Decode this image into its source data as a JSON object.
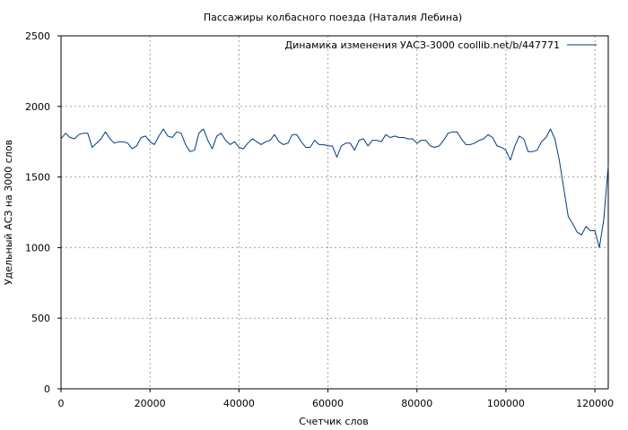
{
  "chart_data": {
    "type": "line",
    "title": "Пассажиры колбасного поезда (Наталия Лебина)",
    "xlabel": "Счетчик слов",
    "ylabel": "Удельный АСЗ на 3000 слов",
    "xlim": [
      0,
      123000
    ],
    "ylim": [
      0,
      2500
    ],
    "x_ticks": [
      0,
      20000,
      40000,
      60000,
      80000,
      100000,
      120000
    ],
    "y_ticks": [
      0,
      500,
      1000,
      1500,
      2000,
      2500
    ],
    "grid": true,
    "legend_position": "top-right",
    "series": [
      {
        "name": "Динамика изменения УАСЗ-3000  coollib.net/b/447771",
        "color": "#003a80",
        "x": [
          0,
          1000,
          2000,
          3000,
          4000,
          5000,
          6000,
          7000,
          8000,
          9000,
          10000,
          11000,
          12000,
          13000,
          14000,
          15000,
          16000,
          17000,
          18000,
          19000,
          20000,
          21000,
          22000,
          23000,
          24000,
          25000,
          26000,
          27000,
          28000,
          29000,
          30000,
          31000,
          32000,
          33000,
          34000,
          35000,
          36000,
          37000,
          38000,
          39000,
          40000,
          41000,
          42000,
          43000,
          44000,
          45000,
          46000,
          47000,
          48000,
          49000,
          50000,
          51000,
          52000,
          53000,
          54000,
          55000,
          56000,
          57000,
          58000,
          59000,
          60000,
          61000,
          62000,
          63000,
          64000,
          65000,
          66000,
          67000,
          68000,
          69000,
          70000,
          71000,
          72000,
          73000,
          74000,
          75000,
          76000,
          77000,
          78000,
          79000,
          80000,
          81000,
          82000,
          83000,
          84000,
          85000,
          86000,
          87000,
          88000,
          89000,
          90000,
          91000,
          92000,
          93000,
          94000,
          95000,
          96000,
          97000,
          98000,
          99000,
          100000,
          101000,
          102000,
          103000,
          104000,
          105000,
          106000,
          107000,
          108000,
          109000,
          110000,
          111000,
          112000,
          113000,
          114000,
          115000,
          116000,
          117000,
          118000,
          119000,
          120000,
          121000,
          122000,
          123000
        ],
        "y": [
          1770,
          1810,
          1780,
          1770,
          1800,
          1810,
          1810,
          1710,
          1740,
          1770,
          1820,
          1770,
          1740,
          1750,
          1750,
          1740,
          1700,
          1720,
          1780,
          1790,
          1750,
          1730,
          1790,
          1840,
          1790,
          1780,
          1820,
          1810,
          1730,
          1680,
          1690,
          1810,
          1840,
          1760,
          1700,
          1790,
          1810,
          1760,
          1730,
          1750,
          1710,
          1700,
          1740,
          1770,
          1750,
          1730,
          1750,
          1760,
          1800,
          1750,
          1730,
          1740,
          1800,
          1800,
          1750,
          1710,
          1710,
          1760,
          1730,
          1730,
          1720,
          1720,
          1640,
          1720,
          1740,
          1740,
          1690,
          1760,
          1770,
          1720,
          1760,
          1760,
          1750,
          1800,
          1780,
          1790,
          1780,
          1780,
          1770,
          1770,
          1740,
          1760,
          1760,
          1720,
          1710,
          1720,
          1760,
          1810,
          1820,
          1820,
          1770,
          1730,
          1730,
          1740,
          1760,
          1770,
          1800,
          1780,
          1720,
          1710,
          1690,
          1620,
          1720,
          1790,
          1770,
          1680,
          1680,
          1690,
          1750,
          1780,
          1840,
          1770,
          1620,
          1420,
          1220,
          1170,
          1110,
          1090,
          1150,
          1120,
          1120,
          1000,
          1200,
          1580
        ]
      }
    ]
  }
}
